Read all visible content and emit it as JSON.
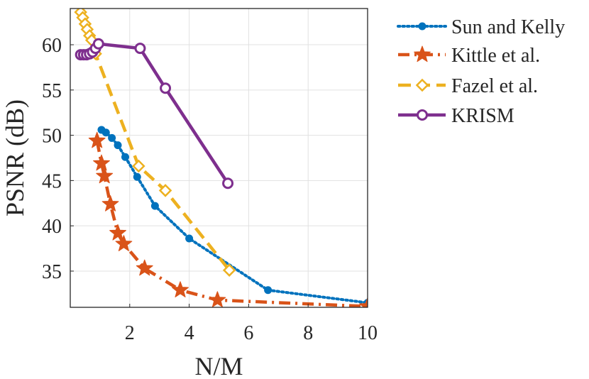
{
  "chart_data": {
    "type": "line",
    "xlabel": "N/M",
    "ylabel": "PSNR (dB)",
    "xlim": [
      0,
      10
    ],
    "ylim": [
      31,
      64
    ],
    "xticks": [
      2,
      4,
      6,
      8,
      10
    ],
    "yticks": [
      35,
      40,
      45,
      50,
      55,
      60
    ],
    "grid": true,
    "legend_position": "outside-right",
    "series": [
      {
        "name": "Sun and Kelly",
        "color": "#0072BD",
        "line_style": "dotted",
        "marker": "filled-circle",
        "x": [
          1.05,
          1.2,
          1.4,
          1.6,
          1.85,
          2.25,
          2.85,
          4.0,
          6.65,
          10.0
        ],
        "y": [
          50.6,
          50.3,
          49.7,
          48.9,
          47.6,
          45.4,
          42.2,
          38.6,
          32.9,
          31.5
        ]
      },
      {
        "name": "Kittle et al.",
        "color": "#D95319",
        "line_style": "dash-dot",
        "marker": "star",
        "x": [
          0.9,
          1.05,
          1.15,
          1.35,
          1.6,
          1.8,
          2.5,
          3.7,
          4.95,
          10.0
        ],
        "y": [
          49.4,
          46.9,
          45.5,
          42.4,
          39.2,
          38.0,
          35.3,
          32.9,
          31.8,
          31.1
        ]
      },
      {
        "name": "Fazel et al.",
        "color": "#EDB120",
        "line_style": "dashed",
        "marker": "diamond",
        "x": [
          0.35,
          0.42,
          0.5,
          0.57,
          0.65,
          0.72,
          0.85,
          2.3,
          3.2,
          5.35
        ],
        "y": [
          63.6,
          63.0,
          62.3,
          61.7,
          61.0,
          60.5,
          59.0,
          46.6,
          43.9,
          35.1
        ]
      },
      {
        "name": "KRISM",
        "color": "#7E2F8E",
        "line_style": "solid",
        "marker": "open-circle",
        "x": [
          0.35,
          0.45,
          0.55,
          0.65,
          0.75,
          0.85,
          0.95,
          2.35,
          3.2,
          5.3
        ],
        "y": [
          58.9,
          58.9,
          58.9,
          59.0,
          59.2,
          59.6,
          60.1,
          59.6,
          55.2,
          44.7
        ]
      }
    ]
  }
}
